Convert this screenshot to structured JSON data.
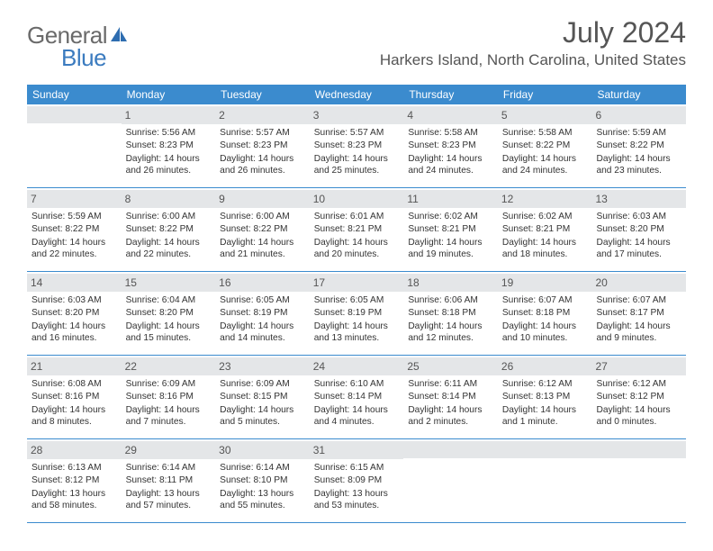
{
  "logo": {
    "general": "General",
    "blue": "Blue"
  },
  "title": "July 2024",
  "location": "Harkers Island, North Carolina, United States",
  "colors": {
    "header_bg": "#3b8bce",
    "daynum_bg": "#e4e6e8",
    "text": "#333333",
    "title_text": "#555555"
  },
  "weekdays": [
    "Sunday",
    "Monday",
    "Tuesday",
    "Wednesday",
    "Thursday",
    "Friday",
    "Saturday"
  ],
  "weeks": [
    [
      {
        "n": "",
        "sr": "",
        "ss": "",
        "dl": ""
      },
      {
        "n": "1",
        "sr": "Sunrise: 5:56 AM",
        "ss": "Sunset: 8:23 PM",
        "dl": "Daylight: 14 hours and 26 minutes."
      },
      {
        "n": "2",
        "sr": "Sunrise: 5:57 AM",
        "ss": "Sunset: 8:23 PM",
        "dl": "Daylight: 14 hours and 26 minutes."
      },
      {
        "n": "3",
        "sr": "Sunrise: 5:57 AM",
        "ss": "Sunset: 8:23 PM",
        "dl": "Daylight: 14 hours and 25 minutes."
      },
      {
        "n": "4",
        "sr": "Sunrise: 5:58 AM",
        "ss": "Sunset: 8:23 PM",
        "dl": "Daylight: 14 hours and 24 minutes."
      },
      {
        "n": "5",
        "sr": "Sunrise: 5:58 AM",
        "ss": "Sunset: 8:22 PM",
        "dl": "Daylight: 14 hours and 24 minutes."
      },
      {
        "n": "6",
        "sr": "Sunrise: 5:59 AM",
        "ss": "Sunset: 8:22 PM",
        "dl": "Daylight: 14 hours and 23 minutes."
      }
    ],
    [
      {
        "n": "7",
        "sr": "Sunrise: 5:59 AM",
        "ss": "Sunset: 8:22 PM",
        "dl": "Daylight: 14 hours and 22 minutes."
      },
      {
        "n": "8",
        "sr": "Sunrise: 6:00 AM",
        "ss": "Sunset: 8:22 PM",
        "dl": "Daylight: 14 hours and 22 minutes."
      },
      {
        "n": "9",
        "sr": "Sunrise: 6:00 AM",
        "ss": "Sunset: 8:22 PM",
        "dl": "Daylight: 14 hours and 21 minutes."
      },
      {
        "n": "10",
        "sr": "Sunrise: 6:01 AM",
        "ss": "Sunset: 8:21 PM",
        "dl": "Daylight: 14 hours and 20 minutes."
      },
      {
        "n": "11",
        "sr": "Sunrise: 6:02 AM",
        "ss": "Sunset: 8:21 PM",
        "dl": "Daylight: 14 hours and 19 minutes."
      },
      {
        "n": "12",
        "sr": "Sunrise: 6:02 AM",
        "ss": "Sunset: 8:21 PM",
        "dl": "Daylight: 14 hours and 18 minutes."
      },
      {
        "n": "13",
        "sr": "Sunrise: 6:03 AM",
        "ss": "Sunset: 8:20 PM",
        "dl": "Daylight: 14 hours and 17 minutes."
      }
    ],
    [
      {
        "n": "14",
        "sr": "Sunrise: 6:03 AM",
        "ss": "Sunset: 8:20 PM",
        "dl": "Daylight: 14 hours and 16 minutes."
      },
      {
        "n": "15",
        "sr": "Sunrise: 6:04 AM",
        "ss": "Sunset: 8:20 PM",
        "dl": "Daylight: 14 hours and 15 minutes."
      },
      {
        "n": "16",
        "sr": "Sunrise: 6:05 AM",
        "ss": "Sunset: 8:19 PM",
        "dl": "Daylight: 14 hours and 14 minutes."
      },
      {
        "n": "17",
        "sr": "Sunrise: 6:05 AM",
        "ss": "Sunset: 8:19 PM",
        "dl": "Daylight: 14 hours and 13 minutes."
      },
      {
        "n": "18",
        "sr": "Sunrise: 6:06 AM",
        "ss": "Sunset: 8:18 PM",
        "dl": "Daylight: 14 hours and 12 minutes."
      },
      {
        "n": "19",
        "sr": "Sunrise: 6:07 AM",
        "ss": "Sunset: 8:18 PM",
        "dl": "Daylight: 14 hours and 10 minutes."
      },
      {
        "n": "20",
        "sr": "Sunrise: 6:07 AM",
        "ss": "Sunset: 8:17 PM",
        "dl": "Daylight: 14 hours and 9 minutes."
      }
    ],
    [
      {
        "n": "21",
        "sr": "Sunrise: 6:08 AM",
        "ss": "Sunset: 8:16 PM",
        "dl": "Daylight: 14 hours and 8 minutes."
      },
      {
        "n": "22",
        "sr": "Sunrise: 6:09 AM",
        "ss": "Sunset: 8:16 PM",
        "dl": "Daylight: 14 hours and 7 minutes."
      },
      {
        "n": "23",
        "sr": "Sunrise: 6:09 AM",
        "ss": "Sunset: 8:15 PM",
        "dl": "Daylight: 14 hours and 5 minutes."
      },
      {
        "n": "24",
        "sr": "Sunrise: 6:10 AM",
        "ss": "Sunset: 8:14 PM",
        "dl": "Daylight: 14 hours and 4 minutes."
      },
      {
        "n": "25",
        "sr": "Sunrise: 6:11 AM",
        "ss": "Sunset: 8:14 PM",
        "dl": "Daylight: 14 hours and 2 minutes."
      },
      {
        "n": "26",
        "sr": "Sunrise: 6:12 AM",
        "ss": "Sunset: 8:13 PM",
        "dl": "Daylight: 14 hours and 1 minute."
      },
      {
        "n": "27",
        "sr": "Sunrise: 6:12 AM",
        "ss": "Sunset: 8:12 PM",
        "dl": "Daylight: 14 hours and 0 minutes."
      }
    ],
    [
      {
        "n": "28",
        "sr": "Sunrise: 6:13 AM",
        "ss": "Sunset: 8:12 PM",
        "dl": "Daylight: 13 hours and 58 minutes."
      },
      {
        "n": "29",
        "sr": "Sunrise: 6:14 AM",
        "ss": "Sunset: 8:11 PM",
        "dl": "Daylight: 13 hours and 57 minutes."
      },
      {
        "n": "30",
        "sr": "Sunrise: 6:14 AM",
        "ss": "Sunset: 8:10 PM",
        "dl": "Daylight: 13 hours and 55 minutes."
      },
      {
        "n": "31",
        "sr": "Sunrise: 6:15 AM",
        "ss": "Sunset: 8:09 PM",
        "dl": "Daylight: 13 hours and 53 minutes."
      },
      {
        "n": "",
        "sr": "",
        "ss": "",
        "dl": ""
      },
      {
        "n": "",
        "sr": "",
        "ss": "",
        "dl": ""
      },
      {
        "n": "",
        "sr": "",
        "ss": "",
        "dl": ""
      }
    ]
  ]
}
